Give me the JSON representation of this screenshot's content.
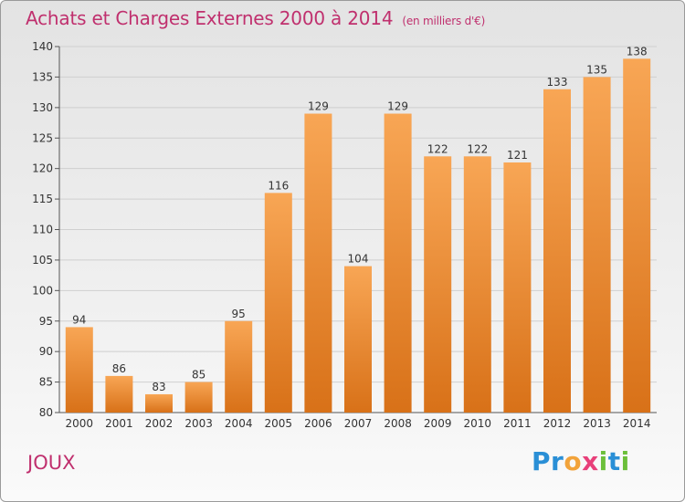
{
  "title": "Achats et Charges Externes 2000 à 2014",
  "unit": "(en milliers d'€)",
  "place": "JOUX",
  "logo": {
    "letters": [
      {
        "ch": "P",
        "color": "#2a8fd6"
      },
      {
        "ch": "r",
        "color": "#2a8fd6"
      },
      {
        "ch": "o",
        "color": "#f2a33a"
      },
      {
        "ch": "x",
        "color": "#e8407a"
      },
      {
        "ch": "i",
        "color": "#6cbf3a"
      },
      {
        "ch": "t",
        "color": "#2a8fd6"
      },
      {
        "ch": "i",
        "color": "#6cbf3a"
      }
    ]
  },
  "colors": {
    "bar_top": "#f8a655",
    "bar_bottom": "#d87118",
    "text": "#c0306e"
  },
  "chart_data": {
    "type": "bar",
    "categories": [
      "2000",
      "2001",
      "2002",
      "2003",
      "2004",
      "2005",
      "2006",
      "2007",
      "2008",
      "2009",
      "2010",
      "2011",
      "2012",
      "2013",
      "2014"
    ],
    "values": [
      94,
      86,
      83,
      85,
      95,
      116,
      129,
      104,
      129,
      122,
      122,
      121,
      133,
      135,
      138
    ],
    "ylim": [
      80,
      140
    ],
    "yticks": [
      80,
      85,
      90,
      95,
      100,
      105,
      110,
      115,
      120,
      125,
      130,
      135,
      140
    ],
    "xlabel": "",
    "ylabel": "",
    "grid": true
  }
}
